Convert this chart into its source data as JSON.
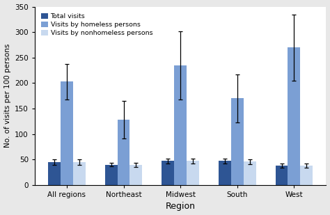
{
  "categories": [
    "All regions",
    "Northeast",
    "Midwest",
    "South",
    "West"
  ],
  "series": {
    "Total visits": {
      "values": [
        45,
        40,
        47,
        47,
        38
      ],
      "errors": [
        5,
        4,
        5,
        5,
        4
      ],
      "color": "#2E5594"
    },
    "Visits by homeless persons": {
      "values": [
        203,
        128,
        235,
        170,
        270
      ],
      "errors": [
        35,
        37,
        67,
        47,
        65
      ],
      "color": "#7B9FD4"
    },
    "Visits by nonhomeless persons": {
      "values": [
        45,
        39,
        47,
        46,
        38
      ],
      "errors": [
        5,
        4,
        5,
        5,
        4
      ],
      "color": "#C8D9EF"
    }
  },
  "ylabel": "No. of visits per 100 persons",
  "xlabel": "Region",
  "ylim": [
    0,
    350
  ],
  "yticks": [
    0,
    50,
    100,
    150,
    200,
    250,
    300,
    350
  ],
  "legend_labels": [
    "Total visits",
    "Visits by homeless persons",
    "Visits by nonhomeless persons"
  ],
  "bar_width": 0.22,
  "figure_bg": "#e8e8e8",
  "axes_bg": "#ffffff"
}
